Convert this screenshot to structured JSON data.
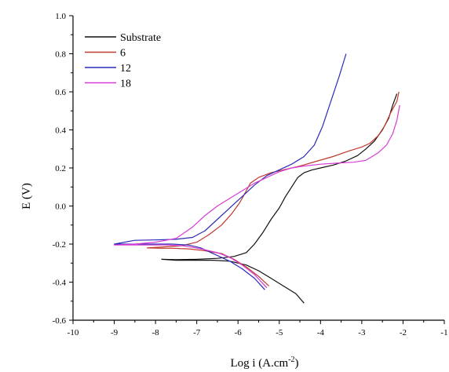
{
  "chart_data": {
    "type": "line",
    "title": "",
    "xlabel": "Log i (A.cm",
    "xlabel_sup": "-2",
    "xlabel_close": ")",
    "ylabel": "E (V)",
    "xlim": [
      -10,
      -1
    ],
    "ylim": [
      -0.6,
      1.0
    ],
    "x_ticks": [
      "-10",
      "-9",
      "-8",
      "-7",
      "-6",
      "-5",
      "-4",
      "-3",
      "-2",
      "-1"
    ],
    "y_ticks": [
      "-0.6",
      "-0.4",
      "-0.2",
      "0.0",
      "0.2",
      "0.4",
      "0.6",
      "0.8",
      "1.0"
    ],
    "grid": false,
    "legend_position": "top-left",
    "series": [
      {
        "name": "Substrate",
        "color": "#111111",
        "points": [
          [
            -4.4,
            -0.51
          ],
          [
            -4.6,
            -0.46
          ],
          [
            -4.9,
            -0.42
          ],
          [
            -5.2,
            -0.38
          ],
          [
            -5.5,
            -0.34
          ],
          [
            -5.8,
            -0.31
          ],
          [
            -6.2,
            -0.29
          ],
          [
            -6.6,
            -0.285
          ],
          [
            -7.0,
            -0.285
          ],
          [
            -7.5,
            -0.285
          ],
          [
            -7.85,
            -0.28
          ],
          [
            -7.5,
            -0.282
          ],
          [
            -7.0,
            -0.28
          ],
          [
            -6.5,
            -0.275
          ],
          [
            -6.1,
            -0.265
          ],
          [
            -5.8,
            -0.245
          ],
          [
            -5.6,
            -0.2
          ],
          [
            -5.4,
            -0.14
          ],
          [
            -5.2,
            -0.07
          ],
          [
            -5.0,
            -0.01
          ],
          [
            -4.85,
            0.05
          ],
          [
            -4.7,
            0.1
          ],
          [
            -4.55,
            0.15
          ],
          [
            -4.4,
            0.175
          ],
          [
            -4.2,
            0.19
          ],
          [
            -4.0,
            0.2
          ],
          [
            -3.7,
            0.215
          ],
          [
            -3.4,
            0.235
          ],
          [
            -3.1,
            0.265
          ],
          [
            -2.9,
            0.3
          ],
          [
            -2.7,
            0.34
          ],
          [
            -2.5,
            0.4
          ],
          [
            -2.35,
            0.46
          ],
          [
            -2.25,
            0.53
          ],
          [
            -2.15,
            0.59
          ]
        ]
      },
      {
        "name": "6",
        "color": "#c0392b",
        "points": [
          [
            -5.25,
            -0.42
          ],
          [
            -5.5,
            -0.37
          ],
          [
            -5.8,
            -0.32
          ],
          [
            -6.1,
            -0.28
          ],
          [
            -6.4,
            -0.25
          ],
          [
            -6.8,
            -0.235
          ],
          [
            -7.2,
            -0.225
          ],
          [
            -7.6,
            -0.222
          ],
          [
            -7.9,
            -0.222
          ],
          [
            -8.2,
            -0.22
          ],
          [
            -7.8,
            -0.215
          ],
          [
            -7.4,
            -0.21
          ],
          [
            -7.0,
            -0.19
          ],
          [
            -6.7,
            -0.15
          ],
          [
            -6.4,
            -0.1
          ],
          [
            -6.15,
            -0.04
          ],
          [
            -5.95,
            0.02
          ],
          [
            -5.8,
            0.08
          ],
          [
            -5.7,
            0.12
          ],
          [
            -5.5,
            0.15
          ],
          [
            -5.2,
            0.175
          ],
          [
            -4.9,
            0.19
          ],
          [
            -4.5,
            0.21
          ],
          [
            -4.1,
            0.235
          ],
          [
            -3.7,
            0.26
          ],
          [
            -3.3,
            0.29
          ],
          [
            -3.0,
            0.31
          ],
          [
            -2.8,
            0.33
          ],
          [
            -2.6,
            0.37
          ],
          [
            -2.45,
            0.42
          ],
          [
            -2.3,
            0.49
          ],
          [
            -2.15,
            0.55
          ],
          [
            -2.1,
            0.6
          ]
        ]
      },
      {
        "name": "12",
        "color": "#2b2bb8",
        "points": [
          [
            -5.35,
            -0.44
          ],
          [
            -5.6,
            -0.38
          ],
          [
            -5.9,
            -0.33
          ],
          [
            -6.2,
            -0.29
          ],
          [
            -6.5,
            -0.26
          ],
          [
            -6.9,
            -0.22
          ],
          [
            -7.2,
            -0.205
          ],
          [
            -7.6,
            -0.2
          ],
          [
            -8.0,
            -0.2
          ],
          [
            -8.5,
            -0.2
          ],
          [
            -9.0,
            -0.2
          ],
          [
            -8.5,
            -0.18
          ],
          [
            -8.0,
            -0.178
          ],
          [
            -7.5,
            -0.175
          ],
          [
            -7.1,
            -0.165
          ],
          [
            -6.8,
            -0.13
          ],
          [
            -6.5,
            -0.07
          ],
          [
            -6.2,
            -0.01
          ],
          [
            -5.9,
            0.05
          ],
          [
            -5.6,
            0.11
          ],
          [
            -5.3,
            0.16
          ],
          [
            -5.0,
            0.19
          ],
          [
            -4.7,
            0.22
          ],
          [
            -4.4,
            0.26
          ],
          [
            -4.15,
            0.32
          ],
          [
            -3.95,
            0.42
          ],
          [
            -3.75,
            0.55
          ],
          [
            -3.55,
            0.68
          ],
          [
            -3.38,
            0.8
          ]
        ]
      },
      {
        "name": "18",
        "color": "#d63bd6",
        "points": [
          [
            -5.3,
            -0.43
          ],
          [
            -5.6,
            -0.36
          ],
          [
            -5.9,
            -0.31
          ],
          [
            -6.2,
            -0.27
          ],
          [
            -6.5,
            -0.245
          ],
          [
            -6.9,
            -0.225
          ],
          [
            -7.3,
            -0.21
          ],
          [
            -7.7,
            -0.205
          ],
          [
            -8.1,
            -0.205
          ],
          [
            -8.5,
            -0.205
          ],
          [
            -9.0,
            -0.205
          ],
          [
            -8.5,
            -0.2
          ],
          [
            -8.0,
            -0.19
          ],
          [
            -7.5,
            -0.17
          ],
          [
            -7.1,
            -0.11
          ],
          [
            -6.8,
            -0.05
          ],
          [
            -6.5,
            0.0
          ],
          [
            -6.2,
            0.04
          ],
          [
            -5.9,
            0.08
          ],
          [
            -5.6,
            0.12
          ],
          [
            -5.3,
            0.15
          ],
          [
            -5.0,
            0.18
          ],
          [
            -4.7,
            0.2
          ],
          [
            -4.4,
            0.21
          ],
          [
            -4.0,
            0.22
          ],
          [
            -3.6,
            0.225
          ],
          [
            -3.2,
            0.23
          ],
          [
            -2.9,
            0.24
          ],
          [
            -2.6,
            0.28
          ],
          [
            -2.4,
            0.32
          ],
          [
            -2.25,
            0.38
          ],
          [
            -2.15,
            0.45
          ],
          [
            -2.08,
            0.53
          ]
        ]
      }
    ]
  }
}
